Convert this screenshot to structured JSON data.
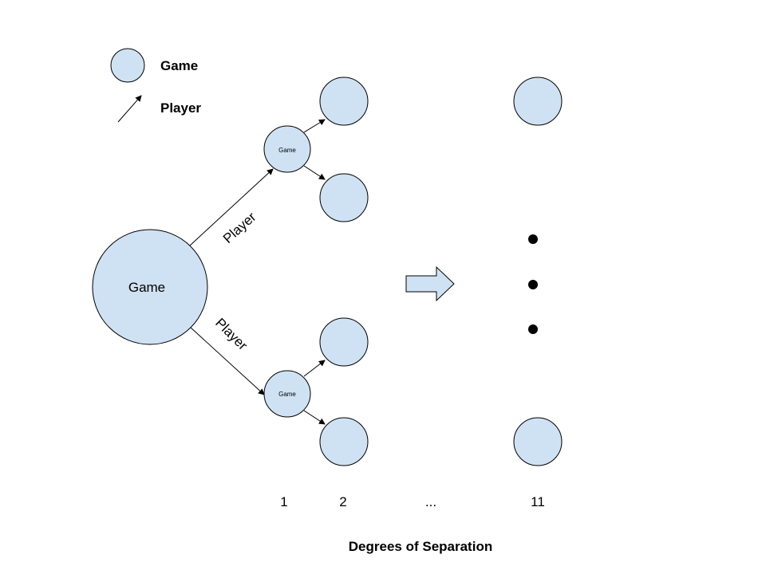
{
  "legend": {
    "game_label": "Game",
    "player_label": "Player"
  },
  "root_node": {
    "label": "Game"
  },
  "edges": {
    "upper_label": "Player",
    "lower_label": "Player"
  },
  "level1_nodes": [
    {
      "label": "Game"
    },
    {
      "label": "Game"
    }
  ],
  "axis": {
    "ticks": [
      "1",
      "2",
      "...",
      "11"
    ],
    "title": "Degrees of Separation"
  },
  "colors": {
    "node_fill": "#cfe2f3",
    "stroke": "#000000"
  }
}
